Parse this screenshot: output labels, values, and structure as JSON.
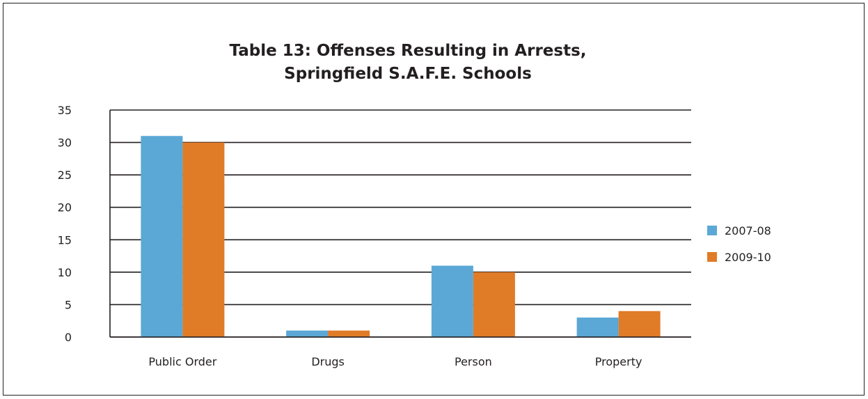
{
  "chart_data": {
    "type": "bar",
    "title": "Table 13: Offenses Resulting in Arrests,",
    "subtitle": "Springfield S.A.F.E. Schools",
    "xlabel": "",
    "ylabel": "",
    "categories": [
      "Public Order",
      "Drugs",
      "Person",
      "Property"
    ],
    "series": [
      {
        "name": "2007-08",
        "values": [
          31,
          1,
          11,
          3
        ],
        "color": "#5ba8d6"
      },
      {
        "name": "2009-10",
        "values": [
          30,
          1,
          10,
          4
        ],
        "color": "#e07b28"
      }
    ],
    "ylim": [
      0,
      35
    ],
    "yticks": [
      0,
      5,
      10,
      15,
      20,
      25,
      30,
      35
    ],
    "grid": true,
    "legend_position": "right"
  }
}
